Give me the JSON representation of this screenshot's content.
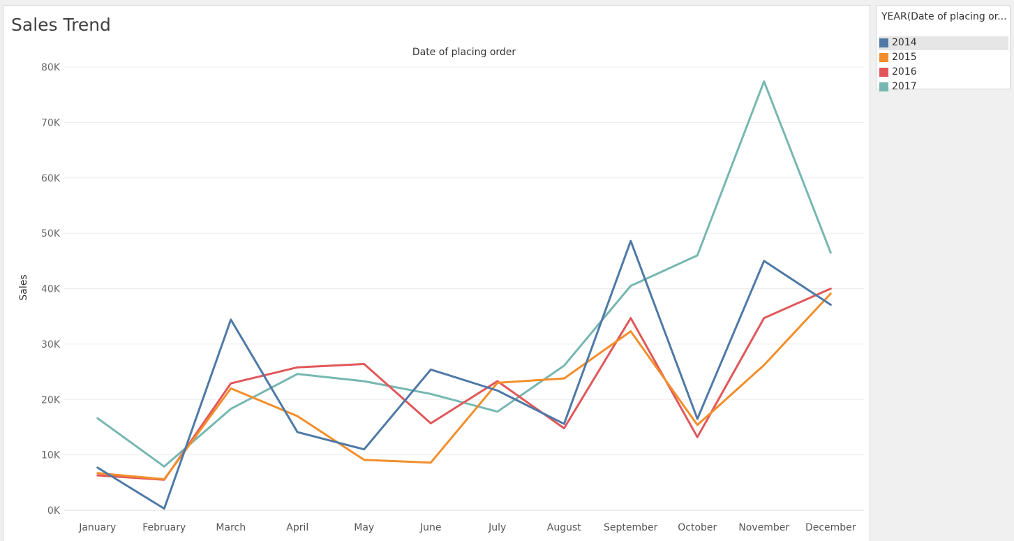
{
  "sheet": {
    "title": "Sales Trend"
  },
  "legend": {
    "title": "YEAR(Date of placing or...",
    "items": [
      {
        "label": "2014",
        "color": "#4e79a7"
      },
      {
        "label": "2015",
        "color": "#f28e2b"
      },
      {
        "label": "2016",
        "color": "#e15759"
      },
      {
        "label": "2017",
        "color": "#76b7b2"
      }
    ]
  },
  "chart_data": {
    "type": "line",
    "title": "Date of placing order",
    "xlabel": "",
    "ylabel": "Sales",
    "categories": [
      "January",
      "February",
      "March",
      "April",
      "May",
      "June",
      "July",
      "August",
      "September",
      "October",
      "November",
      "December"
    ],
    "ylim": [
      0,
      80000
    ],
    "yticks": [
      0,
      10000,
      20000,
      30000,
      40000,
      50000,
      60000,
      70000,
      80000
    ],
    "ytick_labels": [
      "0K",
      "10K",
      "20K",
      "30K",
      "40K",
      "50K",
      "60K",
      "70K",
      "80K"
    ],
    "grid": true,
    "legend_position": "right",
    "series": [
      {
        "name": "2014",
        "color": "#4e79a7",
        "values": [
          7700,
          300,
          34400,
          14100,
          11000,
          25400,
          21600,
          15600,
          48600,
          16500,
          45000,
          37100
        ]
      },
      {
        "name": "2015",
        "color": "#f28e2b",
        "values": [
          6700,
          5600,
          22000,
          17000,
          9100,
          8600,
          23000,
          23800,
          32300,
          15400,
          26200,
          39100
        ]
      },
      {
        "name": "2016",
        "color": "#e15759",
        "values": [
          6300,
          5500,
          22900,
          25800,
          26400,
          15700,
          23300,
          14800,
          34700,
          13200,
          34700,
          40000
        ]
      },
      {
        "name": "2017",
        "color": "#76b7b2",
        "values": [
          16600,
          7900,
          18300,
          24600,
          23300,
          21000,
          17800,
          26100,
          40500,
          46000,
          77400,
          46500
        ]
      }
    ]
  }
}
